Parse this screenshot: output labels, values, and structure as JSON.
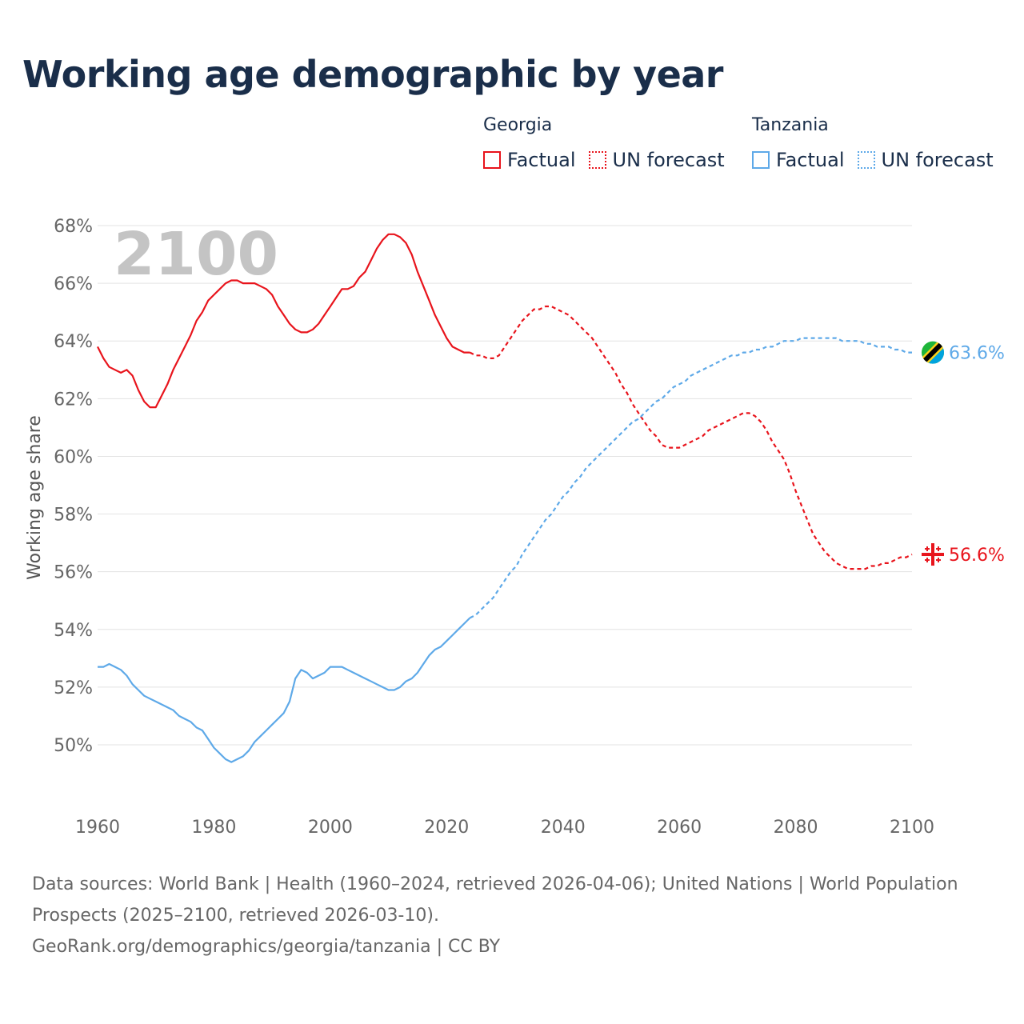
{
  "title": "Working age demographic by year",
  "legend": {
    "groups": [
      {
        "country": "Georgia",
        "factual_label": "Factual",
        "forecast_label": "UN forecast",
        "color": "#e8141c"
      },
      {
        "country": "Tanzania",
        "factual_label": "Factual",
        "forecast_label": "UN forecast",
        "color": "#5ea9e8"
      }
    ]
  },
  "chart_data": {
    "type": "line",
    "year_label": "2100",
    "ylabel": "Working age share",
    "xlim": [
      1960,
      2100
    ],
    "ylim": [
      48,
      68
    ],
    "x_ticks": [
      1960,
      1980,
      2000,
      2020,
      2040,
      2060,
      2080,
      2100
    ],
    "y_ticks": [
      50,
      52,
      54,
      56,
      58,
      60,
      62,
      64,
      66,
      68
    ],
    "y_tick_labels": [
      "50%",
      "52%",
      "54%",
      "56%",
      "58%",
      "60%",
      "62%",
      "64%",
      "66%",
      "68%"
    ],
    "factual_end_year": 2024,
    "series": [
      {
        "name": "Georgia",
        "color": "#e8141c",
        "end_label": "56.6%",
        "flag": "georgia-flag",
        "x": [
          1960,
          1961,
          1962,
          1963,
          1964,
          1965,
          1966,
          1967,
          1968,
          1969,
          1970,
          1971,
          1972,
          1973,
          1974,
          1975,
          1976,
          1977,
          1978,
          1979,
          1980,
          1981,
          1982,
          1983,
          1984,
          1985,
          1986,
          1987,
          1988,
          1989,
          1990,
          1991,
          1992,
          1993,
          1994,
          1995,
          1996,
          1997,
          1998,
          1999,
          2000,
          2001,
          2002,
          2003,
          2004,
          2005,
          2006,
          2007,
          2008,
          2009,
          2010,
          2011,
          2012,
          2013,
          2014,
          2015,
          2016,
          2017,
          2018,
          2019,
          2020,
          2021,
          2022,
          2023,
          2024,
          2025,
          2026,
          2027,
          2028,
          2029,
          2030,
          2031,
          2032,
          2033,
          2034,
          2035,
          2036,
          2037,
          2038,
          2039,
          2040,
          2041,
          2042,
          2043,
          2044,
          2045,
          2046,
          2047,
          2048,
          2049,
          2050,
          2051,
          2052,
          2053,
          2054,
          2055,
          2056,
          2057,
          2058,
          2059,
          2060,
          2061,
          2062,
          2063,
          2064,
          2065,
          2066,
          2067,
          2068,
          2069,
          2070,
          2071,
          2072,
          2073,
          2074,
          2075,
          2076,
          2077,
          2078,
          2079,
          2080,
          2081,
          2082,
          2083,
          2084,
          2085,
          2086,
          2087,
          2088,
          2089,
          2090,
          2091,
          2092,
          2093,
          2094,
          2095,
          2096,
          2097,
          2098,
          2099,
          2100
        ],
        "values": [
          63.8,
          63.4,
          63.1,
          63.0,
          62.9,
          63.0,
          62.8,
          62.3,
          61.9,
          61.7,
          61.7,
          62.1,
          62.5,
          63.0,
          63.4,
          63.8,
          64.2,
          64.7,
          65.0,
          65.4,
          65.6,
          65.8,
          66.0,
          66.1,
          66.1,
          66.0,
          66.0,
          66.0,
          65.9,
          65.8,
          65.6,
          65.2,
          64.9,
          64.6,
          64.4,
          64.3,
          64.3,
          64.4,
          64.6,
          64.9,
          65.2,
          65.5,
          65.8,
          65.8,
          65.9,
          66.2,
          66.4,
          66.8,
          67.2,
          67.5,
          67.7,
          67.7,
          67.6,
          67.4,
          67.0,
          66.4,
          65.9,
          65.4,
          64.9,
          64.5,
          64.1,
          63.8,
          63.7,
          63.6,
          63.6,
          63.5,
          63.5,
          63.4,
          63.4,
          63.5,
          63.8,
          64.1,
          64.4,
          64.7,
          64.9,
          65.1,
          65.1,
          65.2,
          65.2,
          65.1,
          65.0,
          64.9,
          64.7,
          64.5,
          64.3,
          64.1,
          63.8,
          63.5,
          63.2,
          62.9,
          62.5,
          62.2,
          61.8,
          61.5,
          61.2,
          60.9,
          60.7,
          60.4,
          60.3,
          60.3,
          60.3,
          60.4,
          60.5,
          60.6,
          60.7,
          60.9,
          61.0,
          61.1,
          61.2,
          61.3,
          61.4,
          61.5,
          61.5,
          61.4,
          61.2,
          60.9,
          60.5,
          60.2,
          59.9,
          59.4,
          58.8,
          58.3,
          57.8,
          57.3,
          57.0,
          56.7,
          56.5,
          56.3,
          56.2,
          56.1,
          56.1,
          56.1,
          56.1,
          56.2,
          56.2,
          56.3,
          56.3,
          56.4,
          56.5,
          56.5,
          56.6
        ]
      },
      {
        "name": "Tanzania",
        "color": "#5ea9e8",
        "end_label": "63.6%",
        "flag": "tanzania-flag",
        "x": [
          1960,
          1961,
          1962,
          1963,
          1964,
          1965,
          1966,
          1967,
          1968,
          1969,
          1970,
          1971,
          1972,
          1973,
          1974,
          1975,
          1976,
          1977,
          1978,
          1979,
          1980,
          1981,
          1982,
          1983,
          1984,
          1985,
          1986,
          1987,
          1988,
          1989,
          1990,
          1991,
          1992,
          1993,
          1994,
          1995,
          1996,
          1997,
          1998,
          1999,
          2000,
          2001,
          2002,
          2003,
          2004,
          2005,
          2006,
          2007,
          2008,
          2009,
          2010,
          2011,
          2012,
          2013,
          2014,
          2015,
          2016,
          2017,
          2018,
          2019,
          2020,
          2021,
          2022,
          2023,
          2024,
          2025,
          2026,
          2027,
          2028,
          2029,
          2030,
          2031,
          2032,
          2033,
          2034,
          2035,
          2036,
          2037,
          2038,
          2039,
          2040,
          2041,
          2042,
          2043,
          2044,
          2045,
          2046,
          2047,
          2048,
          2049,
          2050,
          2051,
          2052,
          2053,
          2054,
          2055,
          2056,
          2057,
          2058,
          2059,
          2060,
          2061,
          2062,
          2063,
          2064,
          2065,
          2066,
          2067,
          2068,
          2069,
          2070,
          2071,
          2072,
          2073,
          2074,
          2075,
          2076,
          2077,
          2078,
          2079,
          2080,
          2081,
          2082,
          2083,
          2084,
          2085,
          2086,
          2087,
          2088,
          2089,
          2090,
          2091,
          2092,
          2093,
          2094,
          2095,
          2096,
          2097,
          2098,
          2099,
          2100
        ],
        "values": [
          52.7,
          52.7,
          52.8,
          52.7,
          52.6,
          52.4,
          52.1,
          51.9,
          51.7,
          51.6,
          51.5,
          51.4,
          51.3,
          51.2,
          51.0,
          50.9,
          50.8,
          50.6,
          50.5,
          50.2,
          49.9,
          49.7,
          49.5,
          49.4,
          49.5,
          49.6,
          49.8,
          50.1,
          50.3,
          50.5,
          50.7,
          50.9,
          51.1,
          51.5,
          52.3,
          52.6,
          52.5,
          52.3,
          52.4,
          52.5,
          52.7,
          52.7,
          52.7,
          52.6,
          52.5,
          52.4,
          52.3,
          52.2,
          52.1,
          52.0,
          51.9,
          51.9,
          52.0,
          52.2,
          52.3,
          52.5,
          52.8,
          53.1,
          53.3,
          53.4,
          53.6,
          53.8,
          54.0,
          54.2,
          54.4,
          54.5,
          54.7,
          54.9,
          55.1,
          55.4,
          55.7,
          56.0,
          56.2,
          56.6,
          56.9,
          57.2,
          57.5,
          57.8,
          58.0,
          58.3,
          58.6,
          58.8,
          59.1,
          59.3,
          59.6,
          59.8,
          60.0,
          60.2,
          60.4,
          60.6,
          60.8,
          61.0,
          61.2,
          61.3,
          61.5,
          61.7,
          61.9,
          62.0,
          62.2,
          62.4,
          62.5,
          62.6,
          62.8,
          62.9,
          63.0,
          63.1,
          63.2,
          63.3,
          63.4,
          63.5,
          63.5,
          63.6,
          63.6,
          63.7,
          63.7,
          63.8,
          63.8,
          63.9,
          64.0,
          64.0,
          64.0,
          64.1,
          64.1,
          64.1,
          64.1,
          64.1,
          64.1,
          64.1,
          64.0,
          64.0,
          64.0,
          64.0,
          63.9,
          63.9,
          63.8,
          63.8,
          63.8,
          63.7,
          63.7,
          63.6,
          63.6
        ]
      }
    ]
  },
  "footer": {
    "line1": "Data sources: World Bank | Health (1960–2024, retrieved 2026-04-06); United Nations | World Population Prospects (2025–2100, retrieved 2026-03-10).",
    "line2": "GeoRank.org/demographics/georgia/tanzania | CC BY"
  }
}
